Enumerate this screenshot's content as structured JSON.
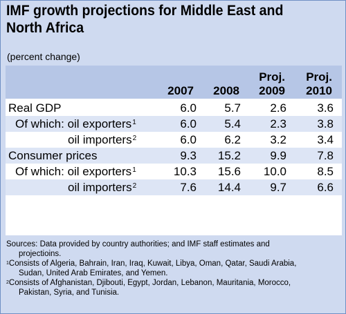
{
  "title_lines": [
    "IMF growth projections for Middle East and",
    "North Africa"
  ],
  "subtitle": "(percent change)",
  "chart_data": {
    "type": "table",
    "columns": [
      {
        "line1": "",
        "line2": "2007"
      },
      {
        "line1": "",
        "line2": "2008"
      },
      {
        "line1": "Proj.",
        "line2": "2009"
      },
      {
        "line1": "Proj.",
        "line2": "2010"
      }
    ],
    "rows": [
      {
        "label": "Real GDP",
        "sup": "",
        "values": [
          "6.0",
          "5.7",
          "2.6",
          "3.6"
        ]
      },
      {
        "label": "Of which: oil exporters",
        "sup": "1",
        "values": [
          "6.0",
          "5.4",
          "2.3",
          "3.8"
        ]
      },
      {
        "label": "oil importers",
        "sup": "2",
        "values": [
          "6.0",
          "6.2",
          "3.2",
          "3.4"
        ]
      },
      {
        "label": "Consumer prices",
        "sup": "",
        "values": [
          "9.3",
          "15.2",
          "9.9",
          "7.8"
        ]
      },
      {
        "label": "Of which: oil exporters",
        "sup": "1",
        "values": [
          "10.3",
          "15.6",
          "10.0",
          "8.5"
        ]
      },
      {
        "label": "oil importers",
        "sup": "2",
        "values": [
          "7.6",
          "14.4",
          "9.7",
          "6.6"
        ]
      }
    ]
  },
  "notes": {
    "sources_line1": "Sources: Data provided by country authorities; and IMF staff estimates and",
    "sources_line2": "projectioins.",
    "note1_sup": "1",
    "note1_line1": "Consists of Algeria, Bahrain, Iran, Iraq, Kuwait, Libya, Oman, Qatar, Saudi Arabia,",
    "note1_line2": "Sudan, United Arab Emirates, and Yemen.",
    "note2_sup": "2",
    "note2_line1": "Consists of Afghanistan, Djibouti, Egypt, Jordan, Lebanon, Mauritania, Morocco,",
    "note2_line2": "Pakistan, Syria, and Tunisia."
  }
}
